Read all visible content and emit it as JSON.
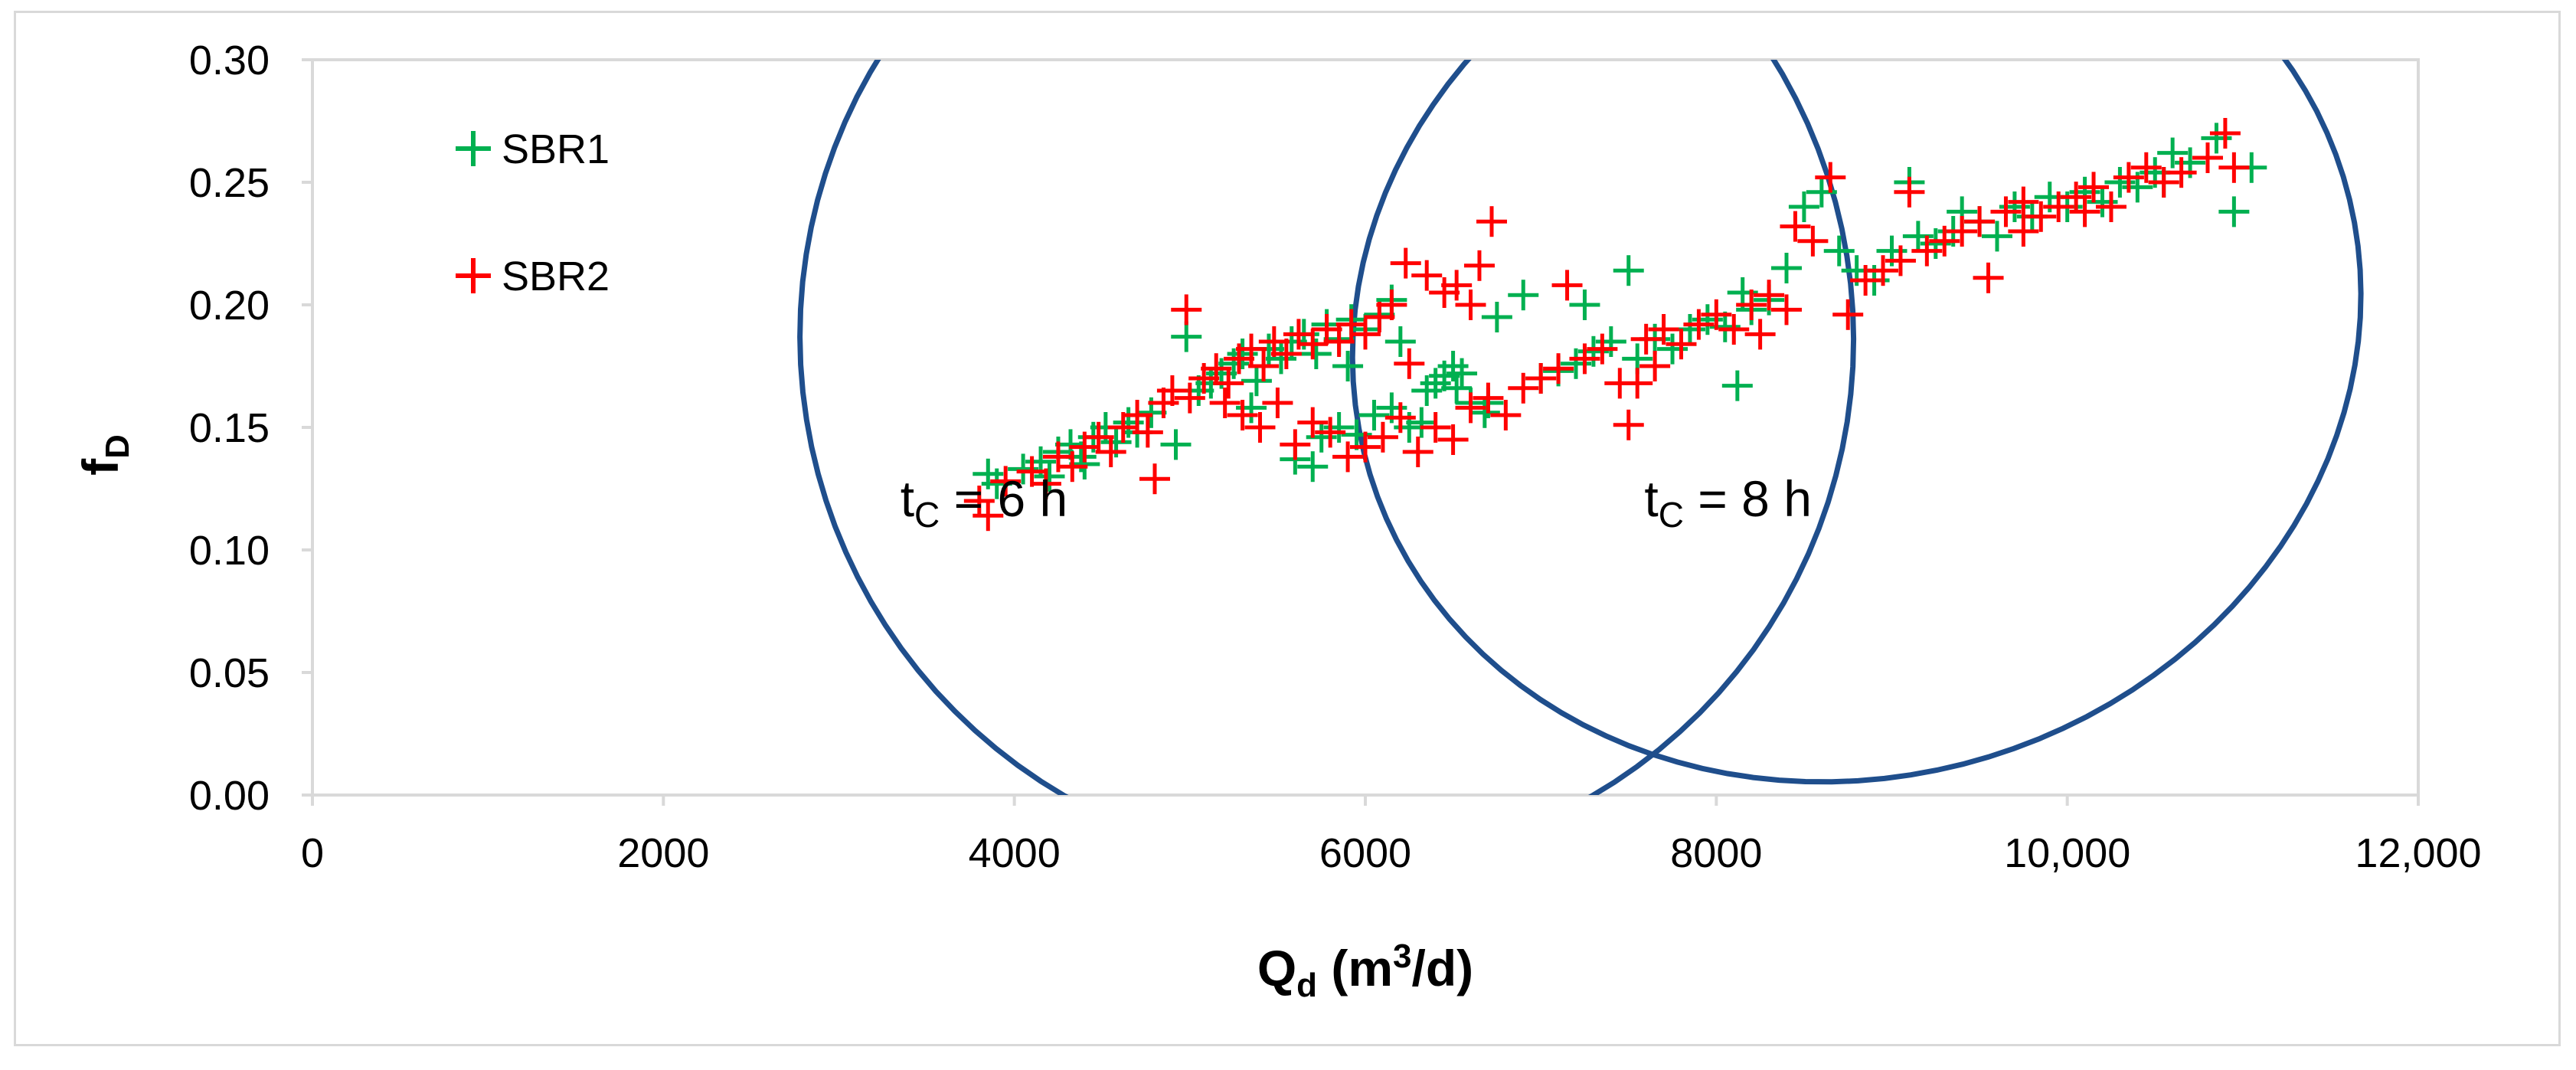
{
  "chart_data": {
    "type": "scatter",
    "title": "",
    "xlabel": {
      "main": "Q",
      "sub": "d",
      "unit_open": " (m",
      "sup": "3",
      "unit_close": "/d)"
    },
    "ylabel": {
      "main": "f",
      "sub": "D"
    },
    "xlim": [
      0,
      12000
    ],
    "ylim": [
      0,
      0.3
    ],
    "x_ticks": [
      0,
      2000,
      4000,
      6000,
      8000,
      10000,
      12000
    ],
    "x_tick_labels": [
      "0",
      "2000",
      "4000",
      "6000",
      "8000",
      "10,000",
      "12,000"
    ],
    "y_ticks": [
      0,
      0.05,
      0.1,
      0.15,
      0.2,
      0.25,
      0.3
    ],
    "y_tick_labels": [
      "0.00",
      "0.05",
      "0.10",
      "0.15",
      "0.20",
      "0.25",
      "0.30"
    ],
    "grid": false,
    "legend": {
      "placement": "top-left",
      "entries": [
        "SBR1",
        "SBR2"
      ]
    },
    "marker": "plus",
    "series": [
      {
        "name": "SBR1",
        "color": "#00b050",
        "points": [
          [
            3850,
            0.131
          ],
          [
            3900,
            0.127
          ],
          [
            4050,
            0.133
          ],
          [
            4150,
            0.136
          ],
          [
            4200,
            0.13
          ],
          [
            4250,
            0.14
          ],
          [
            4320,
            0.143
          ],
          [
            4380,
            0.138
          ],
          [
            4450,
            0.146
          ],
          [
            4520,
            0.15
          ],
          [
            4580,
            0.144
          ],
          [
            4650,
            0.152
          ],
          [
            4700,
            0.148
          ],
          [
            4780,
            0.156
          ],
          [
            4850,
            0.16
          ],
          [
            4920,
            0.143
          ],
          [
            4980,
            0.187
          ],
          [
            5050,
            0.165
          ],
          [
            5120,
            0.168
          ],
          [
            5180,
            0.172
          ],
          [
            5250,
            0.176
          ],
          [
            5300,
            0.18
          ],
          [
            5380,
            0.169
          ],
          [
            5450,
            0.182
          ],
          [
            5520,
            0.178
          ],
          [
            5580,
            0.185
          ],
          [
            5650,
            0.188
          ],
          [
            5720,
            0.18
          ],
          [
            5780,
            0.192
          ],
          [
            5850,
            0.186
          ],
          [
            5920,
            0.194
          ],
          [
            6000,
            0.19
          ],
          [
            6080,
            0.196
          ],
          [
            6150,
            0.202
          ],
          [
            6200,
            0.185
          ],
          [
            5600,
            0.137
          ],
          [
            5700,
            0.134
          ],
          [
            5750,
            0.146
          ],
          [
            5850,
            0.15
          ],
          [
            5950,
            0.147
          ],
          [
            6050,
            0.155
          ],
          [
            6150,
            0.158
          ],
          [
            6250,
            0.15
          ],
          [
            6320,
            0.152
          ],
          [
            6400,
            0.168
          ],
          [
            6450,
            0.171
          ],
          [
            6520,
            0.166
          ],
          [
            6600,
            0.16
          ],
          [
            6680,
            0.156
          ],
          [
            6750,
            0.195
          ],
          [
            6900,
            0.204
          ],
          [
            7000,
            0.17
          ],
          [
            7100,
            0.173
          ],
          [
            7200,
            0.176
          ],
          [
            7300,
            0.181
          ],
          [
            7400,
            0.185
          ],
          [
            7500,
            0.214
          ],
          [
            7550,
            0.178
          ],
          [
            7650,
            0.186
          ],
          [
            7750,
            0.182
          ],
          [
            7850,
            0.19
          ],
          [
            7950,
            0.194
          ],
          [
            8050,
            0.191
          ],
          [
            8120,
            0.167
          ],
          [
            8200,
            0.198
          ],
          [
            8300,
            0.202
          ],
          [
            8400,
            0.215
          ],
          [
            8500,
            0.24
          ],
          [
            8600,
            0.246
          ],
          [
            8700,
            0.222
          ],
          [
            8800,
            0.214
          ],
          [
            8900,
            0.21
          ],
          [
            9000,
            0.222
          ],
          [
            9100,
            0.25
          ],
          [
            9150,
            0.228
          ],
          [
            9250,
            0.225
          ],
          [
            9350,
            0.23
          ],
          [
            9400,
            0.238
          ],
          [
            9500,
            0.234
          ],
          [
            9600,
            0.228
          ],
          [
            9700,
            0.24
          ],
          [
            9800,
            0.236
          ],
          [
            9900,
            0.244
          ],
          [
            10000,
            0.24
          ],
          [
            10100,
            0.246
          ],
          [
            10200,
            0.242
          ],
          [
            10300,
            0.25
          ],
          [
            10400,
            0.248
          ],
          [
            10500,
            0.254
          ],
          [
            10550,
            0.25
          ],
          [
            10600,
            0.262
          ],
          [
            10700,
            0.258
          ],
          [
            10850,
            0.268
          ],
          [
            10950,
            0.238
          ],
          [
            11050,
            0.256
          ],
          [
            6500,
            0.175
          ],
          [
            6550,
            0.172
          ],
          [
            6350,
            0.165
          ],
          [
            4400,
            0.135
          ],
          [
            5350,
            0.158
          ],
          [
            5900,
            0.175
          ],
          [
            6700,
            0.16
          ],
          [
            7250,
            0.2
          ],
          [
            8150,
            0.205
          ]
        ]
      },
      {
        "name": "SBR2",
        "color": "#ff0000",
        "points": [
          [
            3800,
            0.12
          ],
          [
            3850,
            0.114
          ],
          [
            3950,
            0.128
          ],
          [
            4100,
            0.132
          ],
          [
            4180,
            0.127
          ],
          [
            4250,
            0.138
          ],
          [
            4330,
            0.134
          ],
          [
            4400,
            0.142
          ],
          [
            4480,
            0.146
          ],
          [
            4550,
            0.14
          ],
          [
            4620,
            0.15
          ],
          [
            4700,
            0.155
          ],
          [
            4760,
            0.148
          ],
          [
            4800,
            0.129
          ],
          [
            4850,
            0.16
          ],
          [
            4900,
            0.165
          ],
          [
            4980,
            0.198
          ],
          [
            5000,
            0.162
          ],
          [
            5080,
            0.17
          ],
          [
            5150,
            0.174
          ],
          [
            5220,
            0.168
          ],
          [
            5280,
            0.178
          ],
          [
            5350,
            0.182
          ],
          [
            5420,
            0.175
          ],
          [
            5480,
            0.185
          ],
          [
            5550,
            0.18
          ],
          [
            5620,
            0.188
          ],
          [
            5700,
            0.184
          ],
          [
            5780,
            0.19
          ],
          [
            5850,
            0.185
          ],
          [
            5920,
            0.192
          ],
          [
            6000,
            0.188
          ],
          [
            6080,
            0.195
          ],
          [
            6150,
            0.2
          ],
          [
            6230,
            0.217
          ],
          [
            6350,
            0.212
          ],
          [
            6450,
            0.205
          ],
          [
            6520,
            0.208
          ],
          [
            6650,
            0.216
          ],
          [
            6720,
            0.234
          ],
          [
            5300,
            0.155
          ],
          [
            5400,
            0.15
          ],
          [
            5500,
            0.16
          ],
          [
            5600,
            0.143
          ],
          [
            5700,
            0.152
          ],
          [
            5800,
            0.148
          ],
          [
            5900,
            0.138
          ],
          [
            6000,
            0.142
          ],
          [
            6100,
            0.146
          ],
          [
            6200,
            0.154
          ],
          [
            6300,
            0.14
          ],
          [
            6400,
            0.15
          ],
          [
            6500,
            0.145
          ],
          [
            6600,
            0.158
          ],
          [
            6700,
            0.162
          ],
          [
            6800,
            0.155
          ],
          [
            6900,
            0.166
          ],
          [
            7000,
            0.17
          ],
          [
            7100,
            0.174
          ],
          [
            7150,
            0.208
          ],
          [
            7250,
            0.178
          ],
          [
            7350,
            0.182
          ],
          [
            7450,
            0.168
          ],
          [
            7500,
            0.151
          ],
          [
            7600,
            0.186
          ],
          [
            7700,
            0.19
          ],
          [
            7800,
            0.184
          ],
          [
            7900,
            0.192
          ],
          [
            8000,
            0.196
          ],
          [
            8100,
            0.19
          ],
          [
            8200,
            0.2
          ],
          [
            8300,
            0.204
          ],
          [
            8400,
            0.198
          ],
          [
            8450,
            0.232
          ],
          [
            8550,
            0.226
          ],
          [
            8650,
            0.252
          ],
          [
            8750,
            0.196
          ],
          [
            8850,
            0.21
          ],
          [
            8950,
            0.214
          ],
          [
            9050,
            0.218
          ],
          [
            9100,
            0.246
          ],
          [
            9200,
            0.222
          ],
          [
            9300,
            0.226
          ],
          [
            9400,
            0.23
          ],
          [
            9500,
            0.234
          ],
          [
            9550,
            0.211
          ],
          [
            9650,
            0.238
          ],
          [
            9750,
            0.242
          ],
          [
            9850,
            0.236
          ],
          [
            9950,
            0.24
          ],
          [
            10050,
            0.244
          ],
          [
            10150,
            0.248
          ],
          [
            10250,
            0.24
          ],
          [
            10350,
            0.252
          ],
          [
            10450,
            0.256
          ],
          [
            10550,
            0.25
          ],
          [
            10650,
            0.254
          ],
          [
            10800,
            0.26
          ],
          [
            10900,
            0.27
          ],
          [
            10950,
            0.256
          ],
          [
            7550,
            0.168
          ],
          [
            7650,
            0.175
          ],
          [
            8250,
            0.188
          ],
          [
            5200,
            0.16
          ],
          [
            6600,
            0.2
          ],
          [
            6250,
            0.176
          ],
          [
            9750,
            0.23
          ],
          [
            10100,
            0.238
          ]
        ]
      }
    ],
    "ellipses": [
      {
        "name": "tC-6h-group",
        "color": "#1f4e8c",
        "cx": 5780,
        "cy": 0.1865,
        "rx": 3000,
        "ry": 0.0135,
        "angle_deg": 21
      },
      {
        "name": "tC-8h-group",
        "color": "#1f4e8c",
        "cx": 8800,
        "cy": 0.1915,
        "rx": 2900,
        "ry": 0.0115,
        "angle_deg": 17
      }
    ],
    "annotations": [
      {
        "name": "annotation-tc-6h",
        "main": "t",
        "sub": "C",
        "rest": " = 6 h",
        "x": 3350,
        "y": 0.1
      },
      {
        "name": "annotation-tc-8h",
        "main": "t",
        "sub": "C",
        "rest": " = 8 h",
        "x": 7590,
        "y": 0.1
      }
    ]
  }
}
